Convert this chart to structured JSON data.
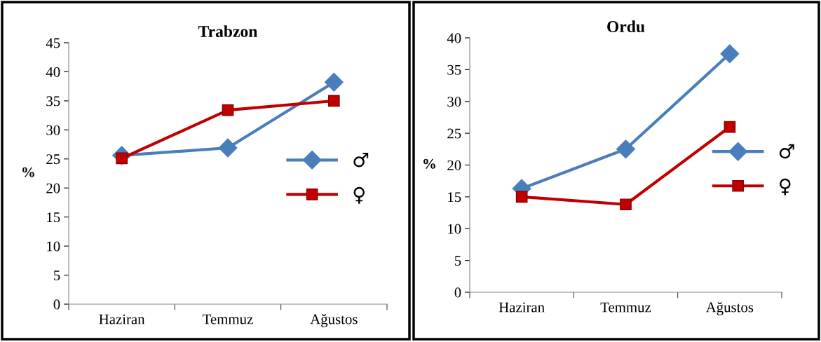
{
  "chart_data": [
    {
      "type": "line",
      "title": "Trabzon",
      "ylabel": "%",
      "categories": [
        "Haziran",
        "Temmuz",
        "Ağustos"
      ],
      "ylim": [
        0,
        45
      ],
      "yticks": [
        0,
        5,
        10,
        15,
        20,
        25,
        30,
        35,
        40,
        45
      ],
      "grid": false,
      "legend": "right",
      "line_style": "solid",
      "series": [
        {
          "name": "♂",
          "color": "#4a7ebb",
          "marker": "diamond",
          "values": [
            25.6,
            26.9,
            38.2
          ]
        },
        {
          "name": "♀",
          "color": "#c00000",
          "marker": "square",
          "values": [
            25.1,
            33.4,
            35.0
          ]
        }
      ]
    },
    {
      "type": "line",
      "title": "Ordu",
      "ylabel": "%",
      "categories": [
        "Haziran",
        "Temmuz",
        "Ağustos"
      ],
      "ylim": [
        0,
        40
      ],
      "yticks": [
        0,
        5,
        10,
        15,
        20,
        25,
        30,
        35,
        40
      ],
      "grid": false,
      "legend": "right",
      "line_style": "solid",
      "series": [
        {
          "name": "♂",
          "color": "#4a7ebb",
          "marker": "diamond",
          "values": [
            16.3,
            22.5,
            37.5
          ]
        },
        {
          "name": "♀",
          "color": "#c00000",
          "marker": "square",
          "values": [
            15.0,
            13.8,
            26.0
          ]
        }
      ]
    }
  ]
}
